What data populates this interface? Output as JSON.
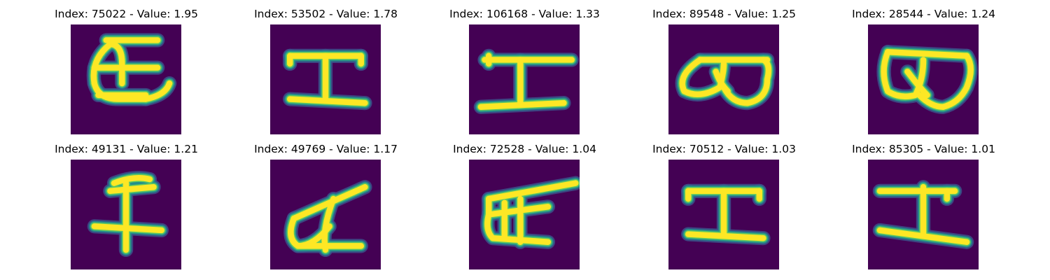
{
  "colors": {
    "background": "#440154",
    "stroke": "#fde725",
    "edge_mid": "#21918c",
    "edge_soft": "#3b528b",
    "edge_bright": "#5ec962"
  },
  "panels": [
    {
      "index_label": "Index:",
      "index": "75022",
      "sep": "-",
      "value_label": "Value:",
      "value": "1.95",
      "glyph": "loop-bar"
    },
    {
      "index_label": "Index:",
      "index": "53502",
      "sep": "-",
      "value_label": "Value:",
      "value": "1.78",
      "glyph": "i-beam"
    },
    {
      "index_label": "Index:",
      "index": "106168",
      "sep": "-",
      "value_label": "Value:",
      "value": "1.33",
      "glyph": "i-beam-wide"
    },
    {
      "index_label": "Index:",
      "index": "89548",
      "sep": "-",
      "value_label": "Value:",
      "value": "1.25",
      "glyph": "double-loop"
    },
    {
      "index_label": "Index:",
      "index": "28544",
      "sep": "-",
      "value_label": "Value:",
      "value": "1.24",
      "glyph": "double-loop-tall"
    },
    {
      "index_label": "Index:",
      "index": "49131",
      "sep": "-",
      "value_label": "Value:",
      "value": "1.21",
      "glyph": "cross"
    },
    {
      "index_label": "Index:",
      "index": "49769",
      "sep": "-",
      "value_label": "Value:",
      "value": "1.17",
      "glyph": "slant-loop"
    },
    {
      "index_label": "Index:",
      "index": "72528",
      "sep": "-",
      "value_label": "Value:",
      "value": "1.04",
      "glyph": "lattice"
    },
    {
      "index_label": "Index:",
      "index": "70512",
      "sep": "-",
      "value_label": "Value:",
      "value": "1.03",
      "glyph": "i-beam"
    },
    {
      "index_label": "Index:",
      "index": "85305",
      "sep": "-",
      "value_label": "Value:",
      "value": "1.01",
      "glyph": "i-beam-slant"
    }
  ]
}
